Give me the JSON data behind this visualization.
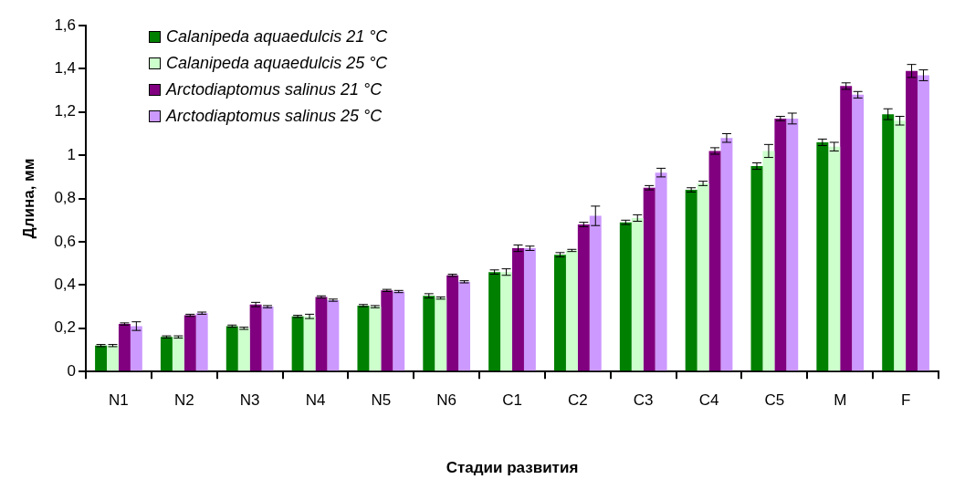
{
  "chart_data": {
    "type": "bar",
    "xlabel": "Стадии развития",
    "ylabel": "Длина, мм",
    "categories": [
      "N1",
      "N2",
      "N3",
      "N4",
      "N5",
      "N6",
      "C1",
      "C2",
      "C3",
      "C4",
      "C5",
      "M",
      "F"
    ],
    "series": [
      {
        "name": "Calanipeda aquaedulcis 21 °C",
        "color": "#008000",
        "values": [
          0.12,
          0.16,
          0.21,
          0.255,
          0.305,
          0.35,
          0.46,
          0.54,
          0.69,
          0.84,
          0.95,
          1.06,
          1.19
        ],
        "errors": [
          0.005,
          0.005,
          0.005,
          0.005,
          0.005,
          0.01,
          0.01,
          0.01,
          0.01,
          0.01,
          0.015,
          0.015,
          0.025
        ]
      },
      {
        "name": "Calanipeda aquaedulcis 25 °C",
        "color": "#ccffcc",
        "values": [
          0.12,
          0.16,
          0.2,
          0.255,
          0.3,
          0.34,
          0.46,
          0.56,
          0.71,
          0.87,
          1.02,
          1.04,
          1.16
        ],
        "errors": [
          0.005,
          0.005,
          0.005,
          0.01,
          0.005,
          0.005,
          0.015,
          0.005,
          0.015,
          0.01,
          0.03,
          0.02,
          0.02
        ]
      },
      {
        "name": "Arctodiaptomus salinus 21 °C",
        "color": "#800080",
        "values": [
          0.22,
          0.26,
          0.31,
          0.345,
          0.375,
          0.445,
          0.57,
          0.68,
          0.85,
          1.02,
          1.17,
          1.32,
          1.39
        ],
        "errors": [
          0.005,
          0.005,
          0.01,
          0.005,
          0.005,
          0.005,
          0.015,
          0.01,
          0.01,
          0.015,
          0.01,
          0.015,
          0.03
        ]
      },
      {
        "name": "Arctodiaptomus salinus 25 °C",
        "color": "#cc99ff",
        "values": [
          0.21,
          0.27,
          0.3,
          0.33,
          0.37,
          0.415,
          0.57,
          0.72,
          0.92,
          1.08,
          1.17,
          1.28,
          1.37
        ],
        "errors": [
          0.02,
          0.005,
          0.005,
          0.005,
          0.005,
          0.005,
          0.01,
          0.045,
          0.02,
          0.02,
          0.025,
          0.015,
          0.025
        ]
      }
    ],
    "ylim": [
      0,
      1.6
    ],
    "yticks": [
      0,
      {
        "value": 0.2,
        "label": "0,2"
      },
      {
        "value": 0.4,
        "label": "0,4"
      },
      {
        "value": 0.6,
        "label": "0,6"
      },
      {
        "value": 0.8,
        "label": "0,8"
      },
      1,
      {
        "value": 1.2,
        "label": "1,2"
      },
      {
        "value": 1.4,
        "label": "1,4"
      },
      {
        "value": 1.6,
        "label": "1,6"
      }
    ],
    "grid": false,
    "legend": "top left"
  }
}
